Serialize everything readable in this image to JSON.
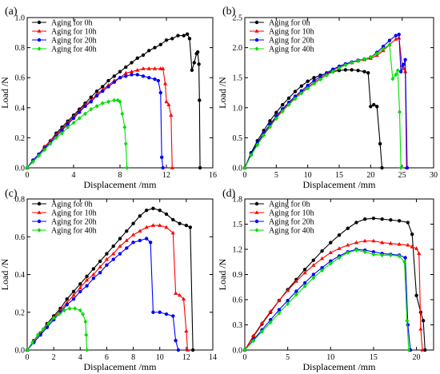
{
  "chart_data": [
    {
      "type": "line",
      "panel_label": "(a)",
      "xlabel": "Displacement /mm",
      "ylabel": "Load /N",
      "xlim": [
        0,
        16
      ],
      "ylim": [
        0,
        1.0
      ],
      "xticks": [
        0,
        4,
        8,
        12,
        16
      ],
      "yticks": [
        0,
        0.2,
        0.4,
        0.6,
        0.8,
        1.0
      ],
      "xtick_labels": [
        "0",
        "4",
        "8",
        "12",
        "16"
      ],
      "ytick_labels": [
        "0.0",
        "0.2",
        "0.4",
        "0.6",
        "0.8",
        "1.0"
      ],
      "legend_position": "top-left",
      "series": [
        {
          "name": "Aging for 0h",
          "color": "#000000",
          "marker": "circle",
          "x": [
            0,
            0.5,
            1,
            1.5,
            2,
            2.5,
            3,
            3.5,
            4,
            4.5,
            5,
            5.5,
            6,
            6.5,
            7,
            7.5,
            8,
            8.5,
            9,
            9.5,
            10,
            10.5,
            11,
            11.5,
            12,
            12.5,
            13,
            13.5,
            13.8,
            14.0,
            14.2,
            14.4,
            14.6,
            14.7,
            14.8,
            14.85,
            14.9
          ],
          "y": [
            0,
            0.05,
            0.09,
            0.14,
            0.18,
            0.23,
            0.27,
            0.31,
            0.35,
            0.39,
            0.43,
            0.47,
            0.51,
            0.54,
            0.58,
            0.61,
            0.64,
            0.67,
            0.7,
            0.73,
            0.75,
            0.78,
            0.8,
            0.82,
            0.85,
            0.86,
            0.88,
            0.88,
            0.89,
            0.86,
            0.65,
            0.7,
            0.76,
            0.77,
            0.69,
            0.45,
            0.0
          ]
        },
        {
          "name": "Aging for 10h",
          "color": "#ff0000",
          "marker": "triangle",
          "x": [
            0,
            0.5,
            1,
            1.5,
            2,
            2.5,
            3,
            3.5,
            4,
            4.5,
            5,
            5.5,
            6,
            6.5,
            7,
            7.5,
            8,
            8.5,
            9,
            9.5,
            10,
            10.5,
            11,
            11.5,
            11.7,
            11.9,
            12.0,
            12.2,
            12.4,
            12.5
          ],
          "y": [
            0,
            0.05,
            0.09,
            0.14,
            0.18,
            0.22,
            0.26,
            0.3,
            0.34,
            0.38,
            0.42,
            0.45,
            0.49,
            0.52,
            0.55,
            0.58,
            0.6,
            0.63,
            0.64,
            0.65,
            0.66,
            0.66,
            0.66,
            0.66,
            0.66,
            0.56,
            0.44,
            0.42,
            0.35,
            0.0
          ]
        },
        {
          "name": "Aging for 20h",
          "color": "#0000ff",
          "marker": "circle",
          "x": [
            0,
            0.5,
            1,
            1.5,
            2,
            2.5,
            3,
            3.5,
            4,
            4.5,
            5,
            5.5,
            6,
            6.5,
            7,
            7.5,
            8,
            8.5,
            9,
            9.5,
            10,
            10.5,
            11,
            11.3,
            11.5,
            11.6,
            11.7
          ],
          "y": [
            0,
            0.05,
            0.09,
            0.13,
            0.17,
            0.21,
            0.25,
            0.29,
            0.33,
            0.37,
            0.41,
            0.44,
            0.48,
            0.51,
            0.54,
            0.57,
            0.6,
            0.61,
            0.62,
            0.62,
            0.61,
            0.6,
            0.59,
            0.58,
            0.5,
            0.07,
            0.0
          ]
        },
        {
          "name": "Aging for 40h",
          "color": "#00dd00",
          "marker": "diamond",
          "x": [
            0,
            0.5,
            1,
            1.5,
            2,
            2.5,
            3,
            3.5,
            4,
            4.5,
            5,
            5.5,
            6,
            6.5,
            7,
            7.5,
            7.8,
            8.0,
            8.2,
            8.4,
            8.5,
            8.6
          ],
          "y": [
            0,
            0.04,
            0.08,
            0.12,
            0.16,
            0.2,
            0.23,
            0.27,
            0.3,
            0.33,
            0.36,
            0.39,
            0.41,
            0.43,
            0.44,
            0.45,
            0.45,
            0.44,
            0.36,
            0.27,
            0.16,
            0.0
          ]
        }
      ]
    },
    {
      "type": "line",
      "panel_label": "(b)",
      "xlabel": "Displacement /mm",
      "ylabel": "Load /N",
      "xlim": [
        0,
        30
      ],
      "ylim": [
        0,
        2.5
      ],
      "xticks": [
        0,
        5,
        10,
        15,
        20,
        25,
        30
      ],
      "yticks": [
        0,
        0.5,
        1.0,
        1.5,
        2.0,
        2.5
      ],
      "xtick_labels": [
        "0",
        "5",
        "10",
        "15",
        "20",
        "25",
        "30"
      ],
      "ytick_labels": [
        "0.0",
        "0.5",
        "1.0",
        "1.5",
        "2.0",
        "2.5"
      ],
      "legend_position": "top-left",
      "series": [
        {
          "name": "Aging for 0h",
          "color": "#000000",
          "marker": "circle",
          "x": [
            0,
            1,
            2,
            3,
            4,
            5,
            6,
            7,
            8,
            9,
            10,
            11,
            12,
            13,
            14,
            15,
            16,
            17,
            18,
            19,
            19.6,
            20.0,
            20.5,
            21.0,
            21.5,
            21.8
          ],
          "y": [
            0,
            0.25,
            0.45,
            0.62,
            0.78,
            0.92,
            1.05,
            1.16,
            1.27,
            1.36,
            1.44,
            1.5,
            1.54,
            1.57,
            1.6,
            1.62,
            1.63,
            1.63,
            1.62,
            1.6,
            1.58,
            1.02,
            1.05,
            1.02,
            0.4,
            0.0
          ]
        },
        {
          "name": "Aging for 10h",
          "color": "#ff0000",
          "marker": "triangle",
          "x": [
            0,
            1,
            2,
            3,
            4,
            5,
            6,
            7,
            8,
            9,
            10,
            11,
            12,
            13,
            14,
            15,
            16,
            17,
            18,
            19,
            20,
            21,
            22,
            23,
            24,
            24.5,
            25.0,
            25.3,
            25.5,
            25.7
          ],
          "y": [
            0,
            0.22,
            0.4,
            0.56,
            0.7,
            0.84,
            0.96,
            1.07,
            1.17,
            1.26,
            1.34,
            1.42,
            1.49,
            1.56,
            1.63,
            1.68,
            1.72,
            1.75,
            1.78,
            1.8,
            1.82,
            1.87,
            1.95,
            2.05,
            2.14,
            2.16,
            1.7,
            1.65,
            1.6,
            0.0
          ]
        },
        {
          "name": "Aging for 20h",
          "color": "#0000ff",
          "marker": "circle",
          "x": [
            0,
            1,
            2,
            3,
            4,
            5,
            6,
            7,
            8,
            9,
            10,
            11,
            12,
            13,
            14,
            15,
            16,
            17,
            18,
            19,
            20,
            21,
            22,
            23,
            24,
            24.5,
            24.8,
            25.2,
            25.5,
            25.8
          ],
          "y": [
            0,
            0.23,
            0.41,
            0.58,
            0.72,
            0.86,
            0.98,
            1.09,
            1.19,
            1.28,
            1.37,
            1.45,
            1.52,
            1.58,
            1.64,
            1.69,
            1.73,
            1.76,
            1.79,
            1.81,
            1.84,
            1.92,
            2.02,
            2.12,
            2.2,
            2.22,
            1.6,
            1.72,
            1.8,
            0.0
          ]
        },
        {
          "name": "Aging for 40h",
          "color": "#00dd00",
          "marker": "diamond",
          "x": [
            0,
            1,
            2,
            3,
            4,
            5,
            6,
            7,
            8,
            9,
            10,
            11,
            12,
            13,
            14,
            15,
            16,
            17,
            18,
            19,
            20,
            21,
            22,
            23,
            23.5,
            24.0,
            24.3,
            24.6,
            24.8
          ],
          "y": [
            0,
            0.21,
            0.38,
            0.54,
            0.68,
            0.82,
            0.94,
            1.05,
            1.15,
            1.24,
            1.32,
            1.4,
            1.47,
            1.54,
            1.6,
            1.66,
            1.71,
            1.75,
            1.78,
            1.81,
            1.84,
            1.9,
            1.98,
            2.05,
            1.48,
            1.55,
            1.62,
            0.93,
            0.0
          ]
        }
      ]
    },
    {
      "type": "line",
      "panel_label": "(c)",
      "xlabel": "Displacement /mm",
      "ylabel": "Load /N",
      "xlim": [
        0,
        14
      ],
      "ylim": [
        0,
        0.8
      ],
      "xticks": [
        0,
        2,
        4,
        6,
        8,
        10,
        12,
        14
      ],
      "yticks": [
        0,
        0.2,
        0.4,
        0.6,
        0.8
      ],
      "xtick_labels": [
        "0",
        "2",
        "4",
        "6",
        "8",
        "10",
        "12",
        "14"
      ],
      "ytick_labels": [
        "0.0",
        "0.2",
        "0.4",
        "0.6",
        "0.8"
      ],
      "legend_position": "top-left",
      "series": [
        {
          "name": "Aging for 0h",
          "color": "#000000",
          "marker": "circle",
          "x": [
            0,
            0.5,
            1,
            1.5,
            2,
            2.5,
            3,
            3.5,
            4,
            4.5,
            5,
            5.5,
            6,
            6.5,
            7,
            7.5,
            8,
            8.5,
            9,
            9.5,
            10,
            10.5,
            11,
            11.5,
            12,
            12.3,
            12.5
          ],
          "y": [
            0,
            0.05,
            0.09,
            0.14,
            0.18,
            0.22,
            0.27,
            0.31,
            0.35,
            0.39,
            0.43,
            0.47,
            0.51,
            0.55,
            0.59,
            0.63,
            0.67,
            0.71,
            0.74,
            0.75,
            0.74,
            0.72,
            0.69,
            0.67,
            0.66,
            0.65,
            0.0
          ]
        },
        {
          "name": "Aging for 10h",
          "color": "#ff0000",
          "marker": "triangle",
          "x": [
            0,
            0.5,
            1,
            1.5,
            2,
            2.5,
            3,
            3.5,
            4,
            4.5,
            5,
            5.5,
            6,
            6.5,
            7,
            7.5,
            8,
            8.5,
            9,
            9.5,
            10,
            10.5,
            11,
            11.2,
            11.5,
            11.8,
            12.0,
            12.1
          ],
          "y": [
            0,
            0.05,
            0.09,
            0.13,
            0.17,
            0.21,
            0.25,
            0.29,
            0.33,
            0.37,
            0.4,
            0.44,
            0.48,
            0.51,
            0.55,
            0.58,
            0.61,
            0.63,
            0.65,
            0.66,
            0.66,
            0.65,
            0.62,
            0.3,
            0.29,
            0.27,
            0.1,
            0.0
          ]
        },
        {
          "name": "Aging for 20h",
          "color": "#0000ff",
          "marker": "circle",
          "x": [
            0,
            0.5,
            1,
            1.5,
            2,
            2.5,
            3,
            3.5,
            4,
            4.5,
            5,
            5.5,
            6,
            6.5,
            7,
            7.5,
            8,
            8.5,
            9,
            9.3,
            9.5,
            10,
            10.5,
            11,
            11.2,
            11.4
          ],
          "y": [
            0,
            0.04,
            0.08,
            0.12,
            0.16,
            0.2,
            0.24,
            0.27,
            0.31,
            0.34,
            0.38,
            0.41,
            0.45,
            0.48,
            0.51,
            0.54,
            0.57,
            0.58,
            0.59,
            0.57,
            0.2,
            0.2,
            0.19,
            0.18,
            0.05,
            0.0
          ]
        },
        {
          "name": "Aging for 40h",
          "color": "#00dd00",
          "marker": "diamond",
          "x": [
            0,
            0.4,
            0.8,
            1.2,
            1.6,
            2.0,
            2.4,
            2.8,
            3.2,
            3.6,
            4.0,
            4.2,
            4.4,
            4.45,
            4.5
          ],
          "y": [
            0,
            0.04,
            0.08,
            0.11,
            0.14,
            0.17,
            0.19,
            0.21,
            0.22,
            0.22,
            0.21,
            0.19,
            0.15,
            0.08,
            0.0
          ]
        }
      ]
    },
    {
      "type": "line",
      "panel_label": "(d)",
      "xlabel": "Displacement /mm",
      "ylabel": "Load /N",
      "xlim": [
        0,
        22
      ],
      "ylim": [
        0,
        1.8
      ],
      "xticks": [
        0,
        5,
        10,
        15,
        20
      ],
      "yticks": [
        0,
        0.3,
        0.6,
        0.9,
        1.2,
        1.5,
        1.8
      ],
      "xtick_labels": [
        "0",
        "5",
        "10",
        "15",
        "20"
      ],
      "ytick_labels": [
        "0.0",
        "0.3",
        "0.6",
        "0.9",
        "1.2",
        "1.5",
        "1.8"
      ],
      "legend_position": "top-left",
      "series": [
        {
          "name": "Aging for 0h",
          "color": "#000000",
          "marker": "circle",
          "x": [
            0,
            1,
            2,
            3,
            4,
            5,
            6,
            7,
            8,
            9,
            10,
            11,
            12,
            13,
            14,
            15,
            16,
            17,
            18,
            19,
            19.5,
            20.0,
            20.5,
            20.8,
            21.0
          ],
          "y": [
            0,
            0.16,
            0.31,
            0.45,
            0.59,
            0.72,
            0.84,
            0.96,
            1.07,
            1.18,
            1.28,
            1.37,
            1.45,
            1.52,
            1.56,
            1.57,
            1.56,
            1.55,
            1.54,
            1.52,
            1.38,
            0.65,
            0.45,
            0.35,
            0.0
          ]
        },
        {
          "name": "Aging for 10h",
          "color": "#ff0000",
          "marker": "triangle",
          "x": [
            0,
            1,
            2,
            3,
            4,
            5,
            6,
            7,
            8,
            9,
            10,
            11,
            12,
            13,
            14,
            15,
            16,
            17,
            18,
            19,
            19.5,
            20.0,
            20.3,
            20.5,
            20.7
          ],
          "y": [
            0,
            0.17,
            0.32,
            0.46,
            0.59,
            0.71,
            0.82,
            0.92,
            1.01,
            1.09,
            1.16,
            1.21,
            1.25,
            1.28,
            1.3,
            1.3,
            1.28,
            1.27,
            1.26,
            1.25,
            1.23,
            1.21,
            1.15,
            0.25,
            0.0
          ]
        },
        {
          "name": "Aging for 20h",
          "color": "#0000ff",
          "marker": "circle",
          "x": [
            0,
            1,
            2,
            3,
            4,
            5,
            6,
            7,
            8,
            9,
            10,
            11,
            12,
            13,
            14,
            15,
            16,
            17,
            18,
            18.7,
            19.0,
            19.3
          ],
          "y": [
            0,
            0.12,
            0.24,
            0.36,
            0.48,
            0.59,
            0.7,
            0.8,
            0.9,
            0.98,
            1.06,
            1.12,
            1.17,
            1.2,
            1.19,
            1.17,
            1.15,
            1.14,
            1.13,
            1.1,
            0.3,
            0.0
          ]
        },
        {
          "name": "Aging for 40h",
          "color": "#00dd00",
          "marker": "diamond",
          "x": [
            0,
            1,
            2,
            3,
            4,
            5,
            6,
            7,
            8,
            9,
            10,
            11,
            12,
            13,
            14,
            15,
            16,
            17,
            18,
            18.6,
            18.9,
            19.1
          ],
          "y": [
            0,
            0.11,
            0.22,
            0.33,
            0.44,
            0.55,
            0.66,
            0.76,
            0.86,
            0.95,
            1.03,
            1.1,
            1.16,
            1.19,
            1.17,
            1.14,
            1.13,
            1.13,
            1.12,
            1.05,
            0.35,
            0.0
          ]
        }
      ]
    }
  ]
}
